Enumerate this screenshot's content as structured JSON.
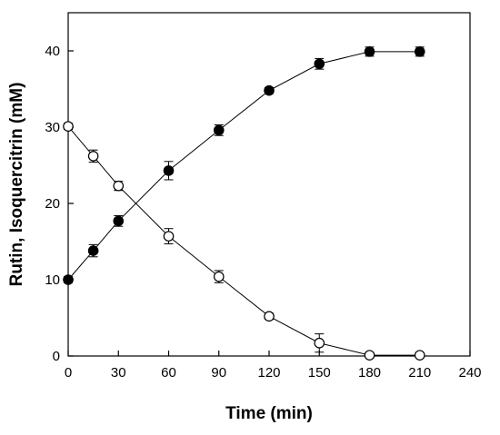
{
  "chart_data": {
    "type": "scatter",
    "title": "",
    "xlabel": "Time (min)",
    "ylabel": "Rutin, Isoquercitrin (mM)",
    "xlim": [
      0,
      240
    ],
    "ylim": [
      0,
      45
    ],
    "xticks": [
      0,
      30,
      60,
      90,
      120,
      150,
      180,
      210,
      240
    ],
    "yticks": [
      0,
      10,
      20,
      30,
      40
    ],
    "grid": false,
    "legend": "none",
    "x": [
      0,
      15,
      30,
      60,
      90,
      120,
      150,
      180,
      210
    ],
    "series": [
      {
        "marker": "filled-circle",
        "color": "#000000",
        "values": [
          10.0,
          13.8,
          17.7,
          24.3,
          29.6,
          34.8,
          38.3,
          39.9,
          39.9
        ],
        "errors": [
          0.4,
          0.8,
          0.7,
          1.2,
          0.7,
          0.4,
          0.7,
          0.6,
          0.6
        ]
      },
      {
        "marker": "open-circle",
        "color": "#000000",
        "values": [
          30.1,
          26.2,
          22.3,
          15.7,
          10.4,
          5.2,
          1.7,
          0.1,
          0.1
        ],
        "errors": [
          0.4,
          0.8,
          0.6,
          1.0,
          0.8,
          0.4,
          1.2,
          0.3,
          0.3
        ]
      }
    ]
  }
}
